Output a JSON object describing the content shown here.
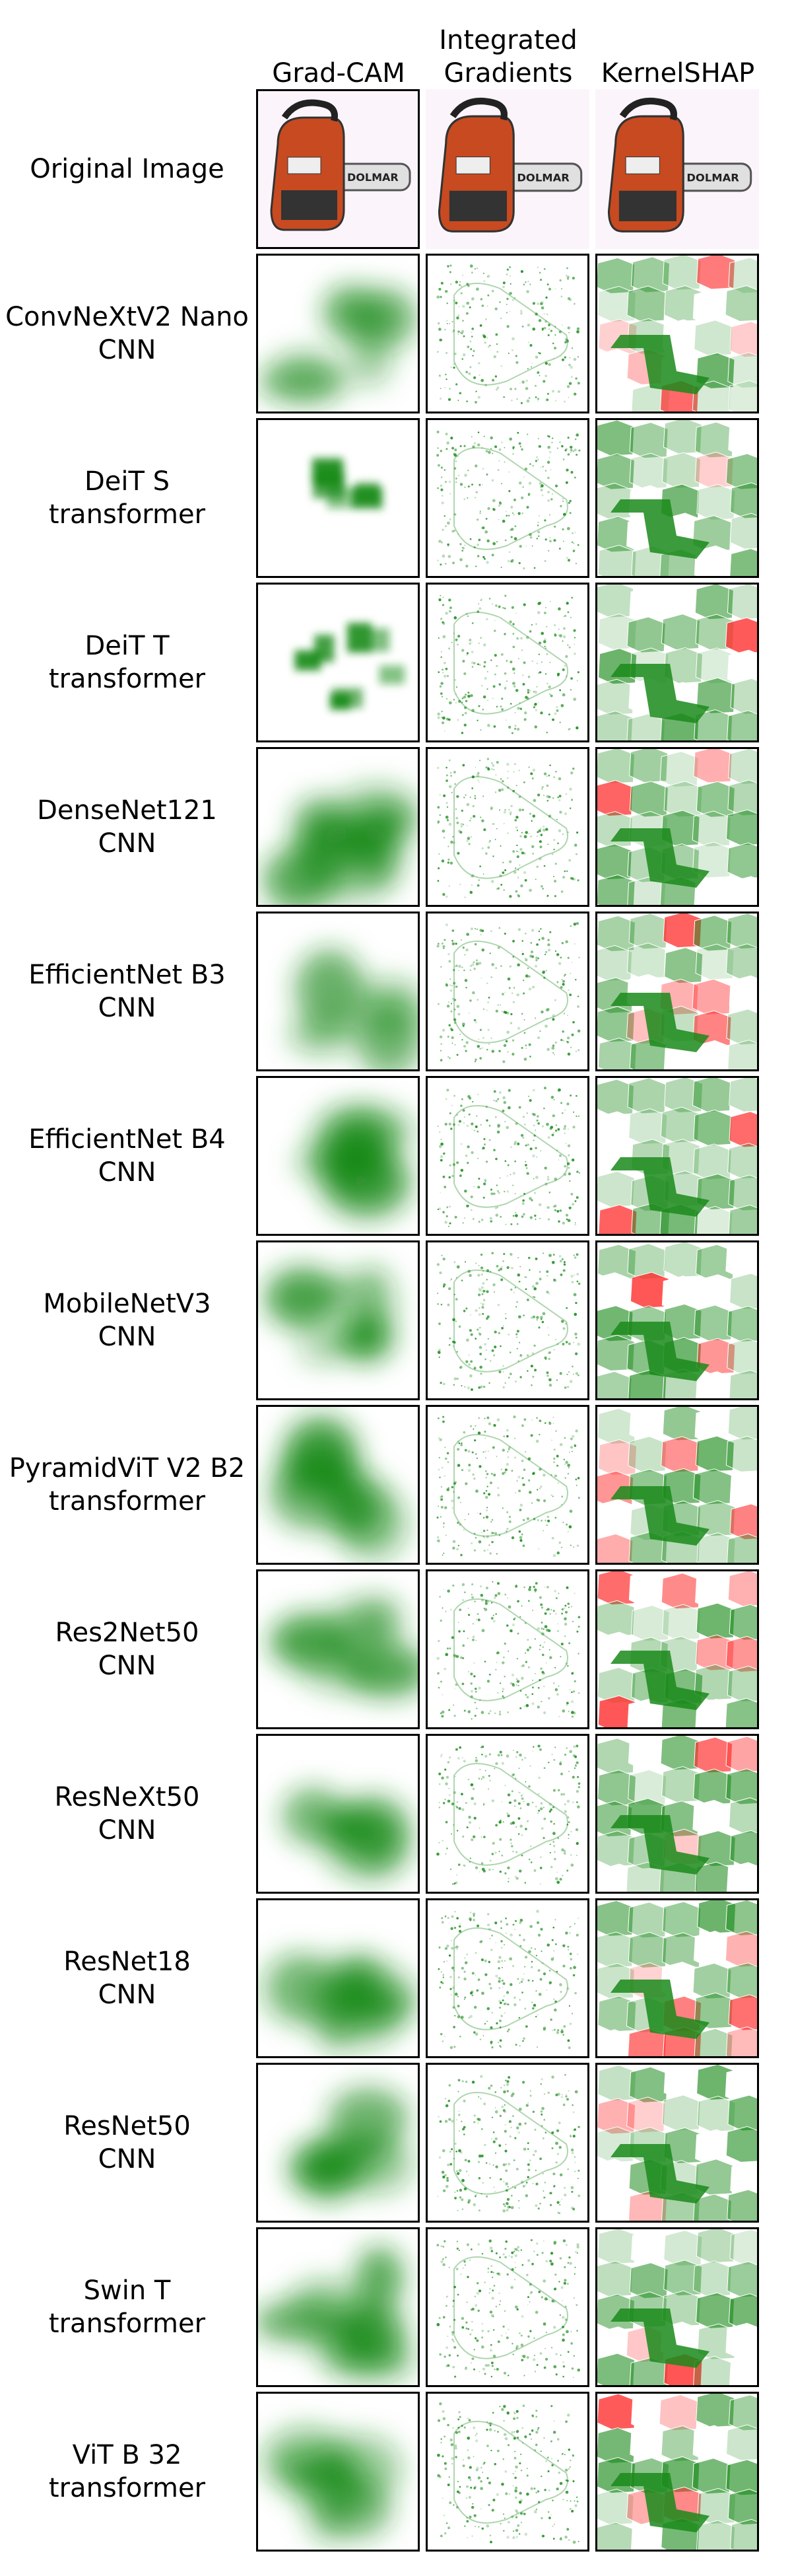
{
  "columns": [
    "Grad-CAM",
    "Integrated\nGradients",
    "KernelSHAP"
  ],
  "rows": [
    {
      "name": "Original Image",
      "type": ""
    },
    {
      "name": "ConvNeXtV2 Nano",
      "type": "CNN"
    },
    {
      "name": "DeiT S",
      "type": "transformer"
    },
    {
      "name": "DeiT T",
      "type": "transformer"
    },
    {
      "name": "DenseNet121",
      "type": "CNN"
    },
    {
      "name": "EfficientNet B3",
      "type": "CNN"
    },
    {
      "name": "EfficientNet B4",
      "type": "CNN"
    },
    {
      "name": "MobileNetV3",
      "type": "CNN"
    },
    {
      "name": "PyramidViT V2 B2",
      "type": "transformer"
    },
    {
      "name": "Res2Net50",
      "type": "CNN"
    },
    {
      "name": "ResNeXt50",
      "type": "CNN"
    },
    {
      "name": "ResNet18",
      "type": "CNN"
    },
    {
      "name": "ResNet50",
      "type": "CNN"
    },
    {
      "name": "Swin T",
      "type": "transformer"
    },
    {
      "name": "ViT B 32",
      "type": "transformer"
    }
  ],
  "original_image": {
    "label": "DOLMAR"
  },
  "colors": {
    "positive": "#1a8a1a",
    "negative": "#ff2a2a",
    "border": "#000000"
  }
}
